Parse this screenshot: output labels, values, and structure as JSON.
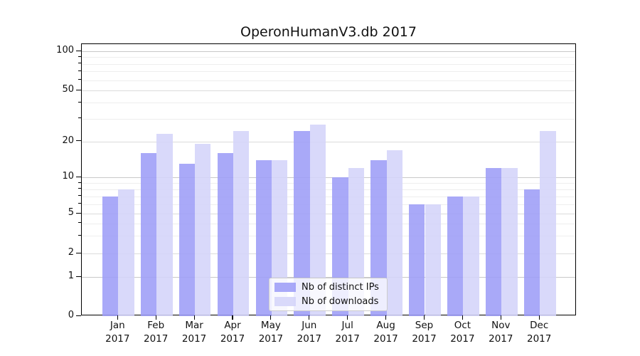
{
  "chart_data": {
    "type": "bar",
    "title": "OperonHumanV3.db 2017",
    "categories": [
      "Jan",
      "Feb",
      "Mar",
      "Apr",
      "May",
      "Jun",
      "Jul",
      "Aug",
      "Sep",
      "Oct",
      "Nov",
      "Dec"
    ],
    "year_label": "2017",
    "series": [
      {
        "name": "Nb of distinct IPs",
        "color": "#9d9df7",
        "values": [
          7,
          16,
          13,
          16,
          14,
          24,
          10,
          14,
          6,
          7,
          12,
          8
        ]
      },
      {
        "name": "Nb of downloads",
        "color": "#d4d4f9",
        "values": [
          8,
          23,
          19,
          24,
          14,
          27,
          12,
          17,
          6,
          7,
          12,
          24
        ]
      }
    ],
    "yscale": "symlog",
    "yticks": [
      0,
      1,
      2,
      5,
      10,
      20,
      50,
      100
    ],
    "ytick_labels": [
      "0",
      "1",
      "2",
      "5",
      "10",
      "20",
      "50",
      "100"
    ],
    "minor_gridlines": [
      3,
      4,
      6,
      7,
      8,
      9,
      30,
      40,
      60,
      70,
      80,
      90
    ],
    "ylim": [
      0,
      114
    ],
    "grid": true,
    "legend_position": "lower-center",
    "colors": {
      "major_grid_dark": "#c8c8c8",
      "major_grid_light": "#dcdcdc",
      "minor_grid": "#eeeeee",
      "axis": "#000000"
    }
  },
  "legend": {
    "items": [
      {
        "label": "Nb of distinct IPs",
        "color": "#9d9df7"
      },
      {
        "label": "Nb of downloads",
        "color": "#d4d4f9"
      }
    ]
  }
}
